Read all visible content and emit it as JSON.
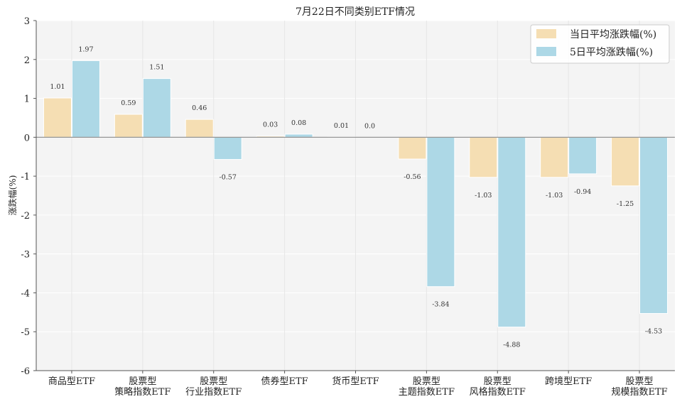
{
  "chart_data": {
    "type": "bar",
    "title": "7月22日不同类别ETF情况",
    "xlabel": "",
    "ylabel": "涨跌幅(%)",
    "ylim": [
      -6,
      3
    ],
    "yticks": [
      "3",
      "2",
      "1",
      "0",
      "-1",
      "-2",
      "-3",
      "-4",
      "-5",
      "-6"
    ],
    "ytick_values": [
      3,
      2,
      1,
      0,
      -1,
      -2,
      -3,
      -4,
      -5,
      -6
    ],
    "grid": true,
    "legend_position": "top-right",
    "categories": [
      [
        "商品型ETF"
      ],
      [
        "股票型",
        "策略指数ETF"
      ],
      [
        "股票型",
        "行业指数ETF"
      ],
      [
        "债券型ETF"
      ],
      [
        "货币型ETF"
      ],
      [
        "股票型",
        "主题指数ETF"
      ],
      [
        "股票型",
        "风格指数ETF"
      ],
      [
        "跨境型ETF"
      ],
      [
        "股票型",
        "规模指数ETF"
      ]
    ],
    "series": [
      {
        "name": "当日平均涨跌幅(%)",
        "color": "#f5deb3",
        "values": [
          1.01,
          0.59,
          0.46,
          0.03,
          0.01,
          -0.56,
          -1.03,
          -1.03,
          -1.25
        ],
        "labels": [
          "1.01",
          "0.59",
          "0.46",
          "0.03",
          "0.01",
          "-0.56",
          "-1.03",
          "-1.03",
          "-1.25"
        ]
      },
      {
        "name": "5日平均涨跌幅(%)",
        "color": "#add8e6",
        "values": [
          1.97,
          1.51,
          -0.57,
          0.08,
          0.0,
          -3.84,
          -4.88,
          -0.94,
          -4.53
        ],
        "labels": [
          "1.97",
          "1.51",
          "-0.57",
          "0.08",
          "0.0",
          "-3.84",
          "-4.88",
          "-0.94",
          "-4.53"
        ]
      }
    ]
  }
}
